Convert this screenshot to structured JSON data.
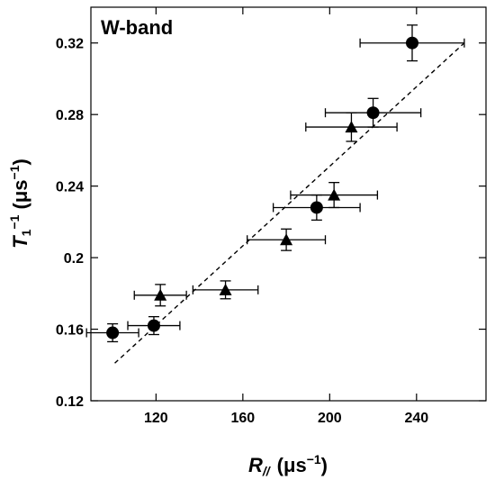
{
  "chart_data": {
    "type": "scatter",
    "panel_label": "W-band",
    "xlabel": {
      "symbol": "R",
      "subscript": "//",
      "unit": "(μs",
      "unit_sup": "−1",
      "unit_close": ")"
    },
    "ylabel": {
      "symbol": "T",
      "subscript": "1",
      "sup": "−1",
      "unit": " (μs",
      "unit_sup": "−1",
      "unit_close": ")"
    },
    "xlim": [
      90,
      272
    ],
    "ylim": [
      0.12,
      0.34
    ],
    "x_ticks": [
      120,
      160,
      200,
      240
    ],
    "x_tick_labels": [
      "120",
      "160",
      "200",
      "240"
    ],
    "y_ticks": [
      0.12,
      0.16,
      0.2,
      0.24,
      0.28,
      0.32
    ],
    "y_tick_labels": [
      "0.12",
      "0.16",
      "0.2",
      "0.24",
      "0.28",
      "0.32"
    ],
    "grid": false,
    "series": [
      {
        "marker": "circle",
        "points": [
          {
            "x": 100,
            "y": 0.158,
            "xerr": 12,
            "yerr": 0.005
          },
          {
            "x": 119,
            "y": 0.162,
            "xerr": 12,
            "yerr": 0.005
          },
          {
            "x": 194,
            "y": 0.228,
            "xerr": 20,
            "yerr": 0.007
          },
          {
            "x": 220,
            "y": 0.281,
            "xerr": 22,
            "yerr": 0.008
          },
          {
            "x": 238,
            "y": 0.32,
            "xerr": 24,
            "yerr": 0.01
          }
        ]
      },
      {
        "marker": "triangle",
        "points": [
          {
            "x": 122,
            "y": 0.179,
            "xerr": 12,
            "yerr": 0.006
          },
          {
            "x": 152,
            "y": 0.182,
            "xerr": 15,
            "yerr": 0.005
          },
          {
            "x": 180,
            "y": 0.21,
            "xerr": 18,
            "yerr": 0.006
          },
          {
            "x": 202,
            "y": 0.235,
            "xerr": 20,
            "yerr": 0.007
          },
          {
            "x": 210,
            "y": 0.273,
            "xerr": 21,
            "yerr": 0.008
          }
        ]
      }
    ],
    "fit_line": {
      "style": "dashed",
      "x": [
        101,
        262
      ],
      "y": [
        0.141,
        0.32
      ]
    },
    "colors": {
      "markers": "#000000",
      "axes": "#000000"
    }
  }
}
